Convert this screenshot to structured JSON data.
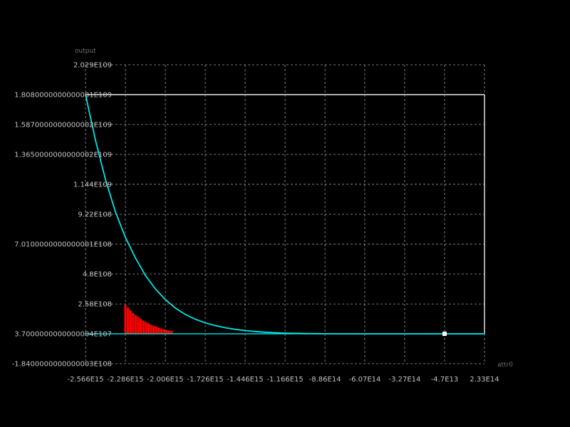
{
  "chart_data": {
    "type": "line",
    "xlabel": "attr0",
    "ylabel": "output",
    "x_ticks": [
      {
        "value": -2566000000000000,
        "label": "-2.566E15"
      },
      {
        "value": -2286000000000000,
        "label": "-2.286E15"
      },
      {
        "value": -2006000000000000,
        "label": "-2.006E15"
      },
      {
        "value": -1726000000000000,
        "label": "-1.726E15"
      },
      {
        "value": -1446000000000000,
        "label": "-1.446E15"
      },
      {
        "value": -1166000000000000,
        "label": "-1.166E15"
      },
      {
        "value": -886000000000000,
        "label": "-8.86E14"
      },
      {
        "value": -607000000000000,
        "label": "-6.07E14"
      },
      {
        "value": -327000000000000,
        "label": "-3.27E14"
      },
      {
        "value": -47000000000000,
        "label": "-4.7E13"
      },
      {
        "value": 233000000000000,
        "label": "2.33E14"
      }
    ],
    "y_ticks": [
      {
        "value": 2029000000,
        "label": "2.029E109"
      },
      {
        "value": 1808000000,
        "label": "1.8080000000000001E109"
      },
      {
        "value": 1587000000,
        "label": "1.5870000000000002E109"
      },
      {
        "value": 1365000000,
        "label": "1.3650000000000002E109"
      },
      {
        "value": 1144000000,
        "label": "1.144E109"
      },
      {
        "value": 922000000,
        "label": "9.22E108"
      },
      {
        "value": 701000000,
        "label": "7.0100000000000001E108"
      },
      {
        "value": 480000000,
        "label": "4.8E108"
      },
      {
        "value": 258000000,
        "label": "2.58E108"
      },
      {
        "value": 37000000,
        "label": "3.7000000000000004E107"
      },
      {
        "value": -184000000,
        "label": "-1.8400000000000003E108"
      }
    ],
    "xlim": [
      -2566000000000000,
      233000000000000
    ],
    "ylim": [
      -184000000,
      2029000000
    ],
    "grid": true,
    "series": [
      {
        "color": "#00e5e5",
        "x": [
          -2566000000000000,
          -2496000000000000,
          -2426000000000000,
          -2356000000000000,
          -2286000000000000,
          -2216000000000000,
          -2146000000000000,
          -2076000000000000,
          -2006000000000000,
          -1936000000000000,
          -1866000000000000,
          -1796000000000000,
          -1726000000000000,
          -1656000000000000,
          -1586000000000000,
          -1516000000000000,
          -1446000000000000,
          -1376000000000000,
          -1306000000000000,
          -1236000000000000,
          -1166000000000000,
          -1026000000000000,
          -886000000000000,
          -607000000000000,
          -327000000000000,
          -47000000000000,
          233000000000000
        ],
        "values": [
          1808000000,
          1470000000,
          1180000000,
          940000000,
          750000000,
          600000000,
          470000000,
          370000000,
          290000000,
          228000000,
          180000000,
          145000000,
          118000000,
          98000000,
          82000000,
          70000000,
          61000000,
          54000000,
          49000000,
          45000000,
          42000000,
          39000000,
          37500000,
          37000000,
          37000000,
          37000000,
          37000000
        ]
      }
    ],
    "boundary_lines": [
      {
        "color": "#ffffff",
        "value": 1808000000
      },
      {
        "color": "#00e5e5",
        "value": 37000000
      }
    ],
    "bar_region": {
      "color": "#ff0000",
      "x": [
        -2286000000000000,
        -2268000000000000,
        -2250000000000000,
        -2232000000000000,
        -2214000000000000,
        -2196000000000000,
        -2178000000000000,
        -2160000000000000,
        -2142000000000000,
        -2124000000000000,
        -2106000000000000,
        -2088000000000000,
        -2070000000000000,
        -2052000000000000,
        -2034000000000000,
        -2016000000000000,
        -1998000000000000,
        -1980000000000000,
        -1962000000000000
      ],
      "values": [
        250000000,
        230000000,
        210000000,
        190000000,
        175000000,
        160000000,
        147000000,
        135000000,
        124000000,
        114000000,
        105000000,
        97000000,
        90000000,
        83000000,
        77000000,
        71000000,
        66000000,
        62000000,
        58000000
      ],
      "base": 37000000
    },
    "marker": {
      "color": "#ffffff",
      "x": -47000000000000,
      "y": 37000000
    }
  }
}
